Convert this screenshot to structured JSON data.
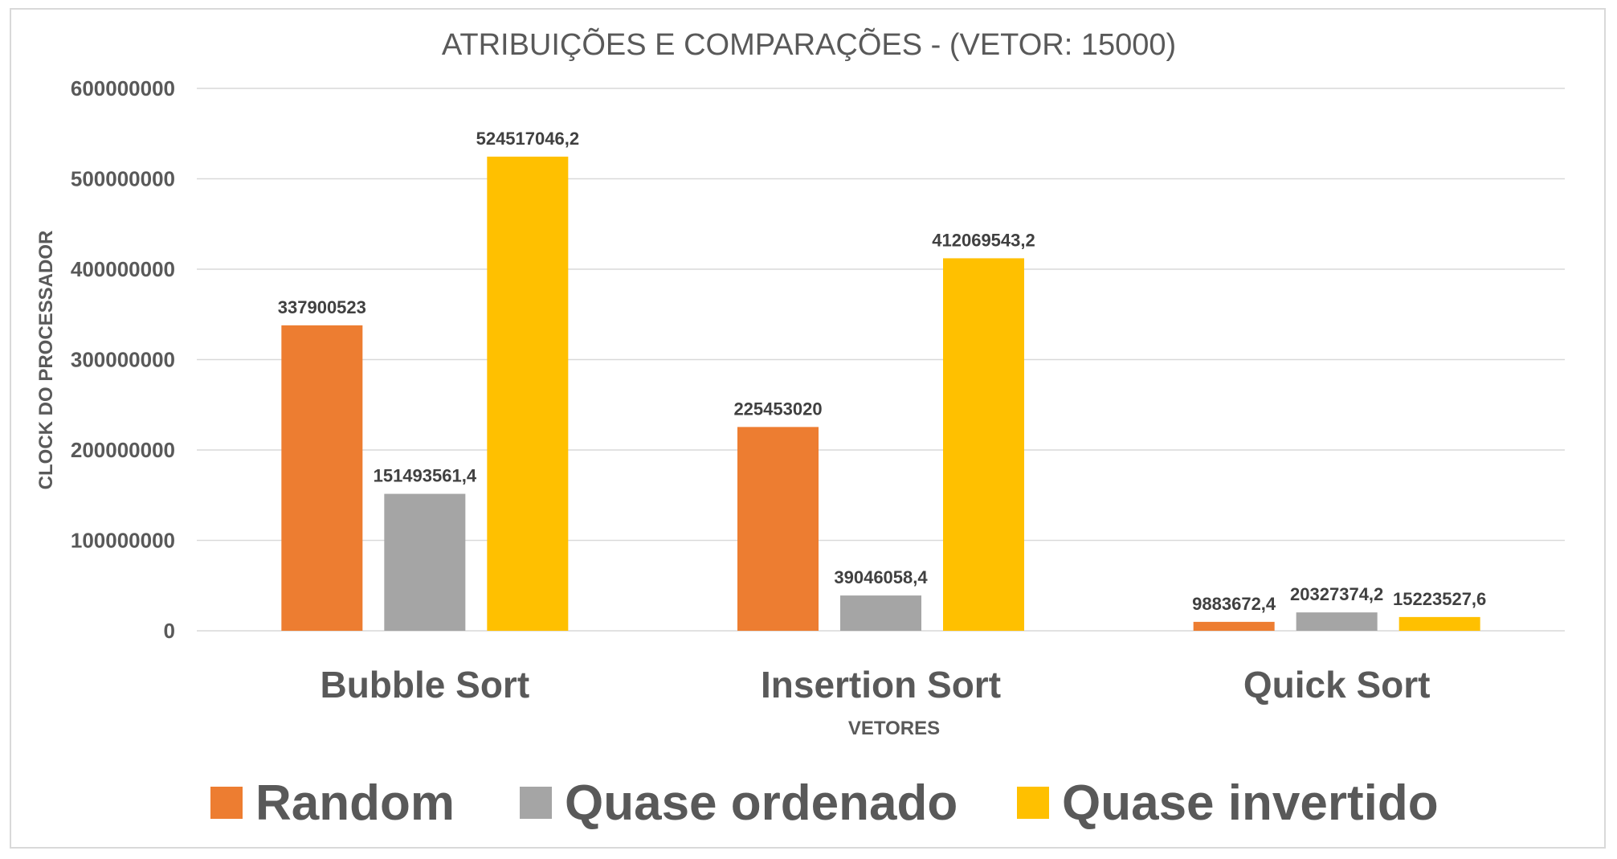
{
  "chart_data": {
    "type": "bar",
    "title": "ATRIBUIÇÕES E COMPARAÇÕES - (VETOR: 15000)",
    "xlabel": "VETORES",
    "ylabel": "CLOCK DO PROCESSADOR",
    "categories": [
      "Bubble Sort",
      "Insertion Sort",
      "Quick Sort"
    ],
    "ylim": [
      0,
      600000000
    ],
    "yticks": [
      "0",
      "100000000",
      "200000000",
      "300000000",
      "400000000",
      "500000000",
      "600000000"
    ],
    "grid": true,
    "legend_position": "bottom",
    "series": [
      {
        "name": "Random",
        "color": "#ED7D31",
        "values": [
          337900523,
          225453020,
          9883672.4
        ],
        "labels": [
          "337900523",
          "225453020",
          "9883672,4"
        ]
      },
      {
        "name": "Quase ordenado",
        "color": "#A5A5A5",
        "values": [
          151493561.4,
          39046058.4,
          20327374.2
        ],
        "labels": [
          "151493561,4",
          "39046058,4",
          "20327374,2"
        ]
      },
      {
        "name": "Quase invertido",
        "color": "#FFC000",
        "values": [
          524517046.2,
          412069543.2,
          15223527.6
        ],
        "labels": [
          "524517046,2",
          "412069543,2",
          "15223527,6"
        ]
      }
    ]
  }
}
